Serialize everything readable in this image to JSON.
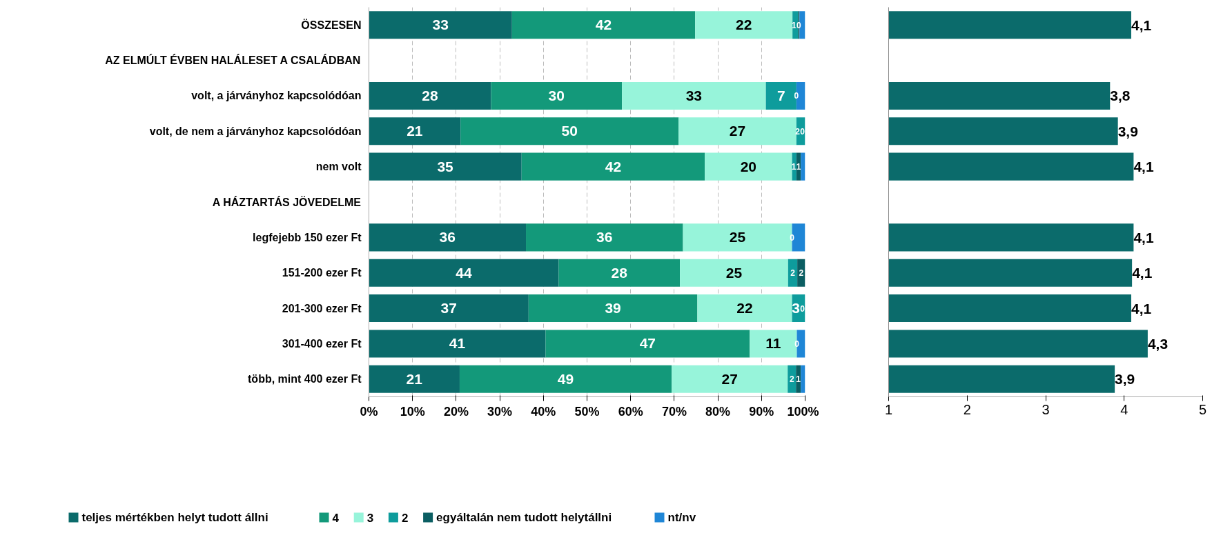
{
  "chart_data": [
    {
      "type": "bar",
      "orientation": "horizontal",
      "stacked": true,
      "data_labels": false,
      "grid": "x",
      "legend": "bottom",
      "categories": [
        "ÖSSZESEN",
        "AZ ELMÚLT ÉVBEN HALÁLESET A CSALÁDBAN",
        "volt, a járványhoz kapcsolódóan",
        "volt, de nem a járványhoz kapcsolódóan",
        "nem volt",
        "A HÁZTARTÁS JÖVEDELME",
        "legfejebb 150 ezer Ft",
        "151-200 ezer Ft",
        "201-300 ezer Ft",
        "301-400 ezer Ft",
        "több, mint 400 ezer Ft"
      ],
      "xlim": [
        0,
        100
      ],
      "xticks": [
        {
          "value": 0,
          "label": "0%"
        },
        {
          "value": 10,
          "label": "10%"
        },
        {
          "value": 20,
          "label": "20%"
        },
        {
          "value": 30,
          "label": "30%"
        },
        {
          "value": 40,
          "label": "40%"
        },
        {
          "value": 50,
          "label": "50%"
        },
        {
          "value": 60,
          "label": "60%"
        },
        {
          "value": 70,
          "label": "70%"
        },
        {
          "value": 80,
          "label": "80%"
        },
        {
          "value": 90,
          "label": "90%"
        },
        {
          "value": 100,
          "label": "100%"
        }
      ],
      "series": [
        {
          "name": "teljes mértékben helyt tudott állni",
          "color": "#0b6b6b",
          "values": [
            32.8,
            null,
            28,
            21,
            35,
            null,
            36,
            43.5,
            36.6,
            40.5,
            20.8
          ],
          "value_labels": [
            "33",
            null,
            "28",
            "21",
            "35",
            null,
            "36",
            "44",
            "37",
            "41",
            "21"
          ]
        },
        {
          "name": "4",
          "color": "#13997a",
          "values": [
            42,
            null,
            30,
            50,
            42,
            null,
            36,
            27.8,
            38.7,
            46.8,
            48.6
          ],
          "value_labels": [
            "42",
            null,
            "30",
            "50",
            "42",
            null,
            "36",
            "28",
            "39",
            "47",
            "49"
          ]
        },
        {
          "name": "3",
          "color": "#97f4da",
          "values": [
            22.3,
            null,
            33,
            27,
            20,
            null,
            25,
            24.8,
            21.7,
            10.8,
            26.6
          ],
          "value_labels": [
            "22",
            null,
            "33",
            "27",
            "20",
            null,
            "25",
            "25",
            "22",
            "11",
            "27"
          ]
        },
        {
          "name": "2",
          "color": "#0e9c9c",
          "values": [
            1.3,
            null,
            7,
            2,
            1,
            null,
            0,
            2.1,
            3,
            0,
            1.9
          ],
          "value_labels": [
            "1",
            null,
            "7",
            "2",
            "1",
            null,
            "0",
            "2",
            "3",
            "0",
            "2"
          ]
        },
        {
          "name": "egyáltalán nem tudott helytállni",
          "color": "#0b5e62",
          "values": [
            0.3,
            null,
            0,
            0,
            1,
            null,
            0,
            1.8,
            0,
            0,
            1.1
          ],
          "value_labels": [
            "0",
            null,
            "0",
            "0",
            "1",
            null,
            null,
            "2",
            "0",
            null,
            "1"
          ]
        },
        {
          "name": "nt/nv",
          "color": "#1f86d6",
          "values": [
            1.3,
            null,
            2,
            0,
            1,
            null,
            3,
            0,
            0,
            1.9,
            1
          ],
          "value_labels": [
            null,
            null,
            null,
            null,
            null,
            null,
            null,
            null,
            null,
            null,
            null
          ]
        }
      ]
    },
    {
      "type": "bar",
      "orientation": "horizontal",
      "grid": false,
      "color": "#0b6b6b",
      "categories": [
        null,
        null,
        null,
        null,
        null,
        null,
        null,
        null,
        null,
        null,
        null
      ],
      "values": [
        4.09,
        null,
        3.82,
        3.92,
        4.12,
        null,
        4.12,
        4.1,
        4.09,
        4.3,
        3.88
      ],
      "value_labels": [
        "4,1",
        null,
        "3,8",
        "3,9",
        "4,1",
        null,
        "4,1",
        "4,1",
        "4,1",
        "4,3",
        "3,9"
      ],
      "xlim": [
        1,
        5
      ],
      "xticks": [
        1,
        2,
        3,
        4,
        5
      ]
    }
  ]
}
